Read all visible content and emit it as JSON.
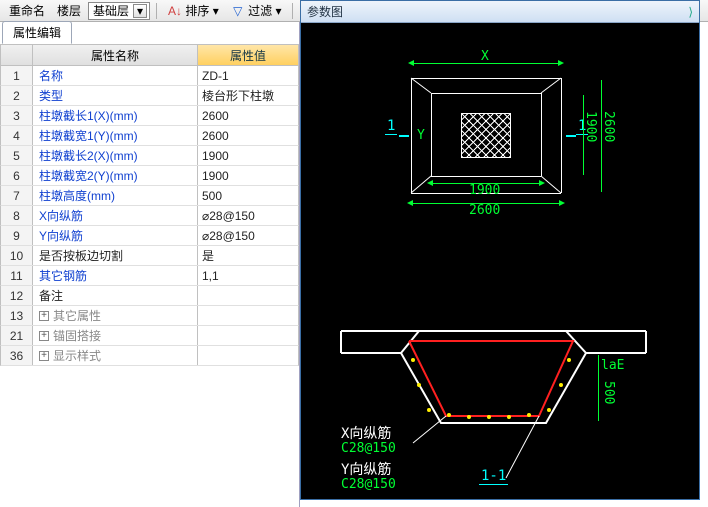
{
  "toolbar": {
    "rename": "重命名",
    "floor": "楼层",
    "layer_select": "基础层",
    "sort": "排序",
    "filter": "过滤"
  },
  "left": {
    "tab": "属性编辑",
    "col_name": "属性名称",
    "col_value": "属性值",
    "rows": [
      {
        "n": "1",
        "name": "名称",
        "cls": "",
        "val": "ZD-1"
      },
      {
        "n": "2",
        "name": "类型",
        "cls": "",
        "val": "棱台形下柱墩"
      },
      {
        "n": "3",
        "name": "柱墩截长1(X)(mm)",
        "cls": "",
        "val": "2600"
      },
      {
        "n": "4",
        "name": "柱墩截宽1(Y)(mm)",
        "cls": "",
        "val": "2600"
      },
      {
        "n": "5",
        "name": "柱墩截长2(X)(mm)",
        "cls": "",
        "val": "1900"
      },
      {
        "n": "6",
        "name": "柱墩截宽2(Y)(mm)",
        "cls": "",
        "val": "1900"
      },
      {
        "n": "7",
        "name": "柱墩高度(mm)",
        "cls": "",
        "val": "500"
      },
      {
        "n": "8",
        "name": "X向纵筋",
        "cls": "",
        "val": "⌀28@150"
      },
      {
        "n": "9",
        "name": "Y向纵筋",
        "cls": "",
        "val": "⌀28@150"
      },
      {
        "n": "10",
        "name": "是否按板边切割",
        "cls": "black",
        "val": "是"
      },
      {
        "n": "11",
        "name": "其它钢筋",
        "cls": "",
        "val": "1,1"
      },
      {
        "n": "12",
        "name": "备注",
        "cls": "black",
        "val": ""
      },
      {
        "n": "13",
        "name": "其它属性",
        "cls": "grey",
        "val": "",
        "exp": true
      },
      {
        "n": "21",
        "name": "锚固搭接",
        "cls": "grey",
        "val": "",
        "exp": true
      },
      {
        "n": "36",
        "name": "显示样式",
        "cls": "grey",
        "val": "",
        "exp": true
      }
    ]
  },
  "diag": {
    "title": "参数图",
    "top": {
      "X": "X",
      "Y": "Y",
      "sec_mark": "1",
      "outer": "2600",
      "inner": "1900",
      "outer_v": "2600",
      "inner_v": "1900"
    },
    "elev": {
      "x_label": "X向纵筋",
      "x_spec": "C28@150",
      "y_label": "Y向纵筋",
      "y_spec": "C28@150",
      "laE": "laE",
      "h": "500",
      "section": "1-1"
    },
    "style": {
      "bg": "#000000",
      "line": "#ffffff",
      "dim": "#00ff33",
      "mark": "#00ffff",
      "rebar": "#ff2020",
      "dot": "#ffee00"
    }
  }
}
